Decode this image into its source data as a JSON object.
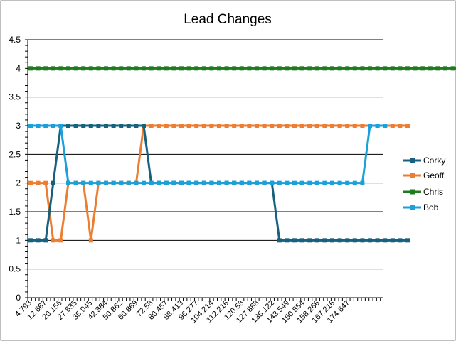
{
  "chart_data": {
    "type": "line",
    "title": "Lead Changes",
    "xlabel": "",
    "ylabel": "",
    "ylim": [
      0,
      4.5
    ],
    "y_ticks": [
      "0",
      "0.5",
      "1",
      "1.5",
      "2",
      "2.5",
      "3",
      "3.5",
      "4",
      "4.5"
    ],
    "x_tick_labels": [
      "4.793",
      "12.667",
      "20.156",
      "27.635",
      "35.045",
      "42.384",
      "50.862",
      "60.869",
      "72.58",
      "80.457",
      "88.413",
      "96.277",
      "104.214",
      "112.216",
      "120.58",
      "127.888",
      "135.122",
      "143.549",
      "150.854",
      "158.266",
      "167.216",
      "174.647"
    ],
    "grid": "horizontal",
    "legend_position": "right",
    "series": [
      {
        "name": "Corky",
        "color": "#17607E",
        "values": [
          1,
          1,
          1,
          2,
          3,
          3,
          3,
          3,
          3,
          3,
          3,
          3,
          3,
          3,
          3,
          3,
          2,
          2,
          2,
          2,
          2,
          2,
          2,
          2,
          2,
          2,
          2,
          2,
          2,
          2,
          2,
          2,
          2,
          1,
          1,
          1,
          1,
          1,
          1,
          1,
          1,
          1,
          1,
          1,
          1,
          1,
          1,
          1,
          1,
          1,
          1
        ]
      },
      {
        "name": "Geoff",
        "color": "#ED7D31",
        "values": [
          2,
          2,
          2,
          1,
          1,
          2,
          2,
          2,
          1,
          2,
          2,
          2,
          2,
          2,
          2,
          3,
          3,
          3,
          3,
          3,
          3,
          3,
          3,
          3,
          3,
          3,
          3,
          3,
          3,
          3,
          3,
          3,
          3,
          3,
          3,
          3,
          3,
          3,
          3,
          3,
          3,
          3,
          3,
          3,
          3,
          3,
          3,
          3,
          3,
          3,
          3
        ]
      },
      {
        "name": "Chris",
        "color": "#1E7B1E",
        "values": [
          4,
          4,
          4,
          4,
          4,
          4,
          4,
          4,
          4,
          4,
          4,
          4,
          4,
          4,
          4,
          4,
          4,
          4,
          4,
          4,
          4,
          4,
          4,
          4,
          4,
          4,
          4,
          4,
          4,
          4,
          4,
          4,
          4,
          4,
          4,
          4,
          4,
          4,
          4,
          4,
          4,
          4,
          4,
          4,
          4,
          4,
          4,
          4,
          4,
          4,
          4,
          4,
          4,
          4,
          4,
          4,
          4,
          4,
          4,
          4,
          4,
          4,
          4,
          4,
          4,
          4,
          4,
          4,
          4,
          4,
          4,
          4,
          4,
          4,
          4,
          4,
          4,
          4,
          4,
          4,
          4,
          4,
          4,
          4,
          4,
          4,
          4,
          4,
          4,
          4,
          4,
          4,
          4,
          4,
          4,
          4,
          4,
          4,
          4,
          4,
          4,
          4,
          4,
          4,
          4,
          4,
          4,
          4,
          4,
          4,
          4,
          4,
          4,
          4,
          4,
          4,
          4,
          4,
          4,
          4,
          4,
          4,
          4,
          4,
          4,
          4,
          4,
          4,
          4,
          4,
          4,
          4,
          4,
          4,
          4,
          4,
          4,
          4,
          4,
          4,
          4,
          4,
          4,
          4,
          4,
          4,
          4,
          4,
          4,
          4,
          4
        ]
      },
      {
        "name": "Bob",
        "color": "#1AA1DC",
        "values": [
          3,
          3,
          3,
          3,
          3,
          2,
          2,
          2,
          2,
          2,
          2,
          2,
          2,
          2,
          2,
          2,
          2,
          2,
          2,
          2,
          2,
          2,
          2,
          2,
          2,
          2,
          2,
          2,
          2,
          2,
          2,
          2,
          2,
          2,
          2,
          2,
          2,
          2,
          2,
          2,
          2,
          2,
          2,
          2,
          2,
          3,
          3,
          3
        ]
      }
    ]
  }
}
